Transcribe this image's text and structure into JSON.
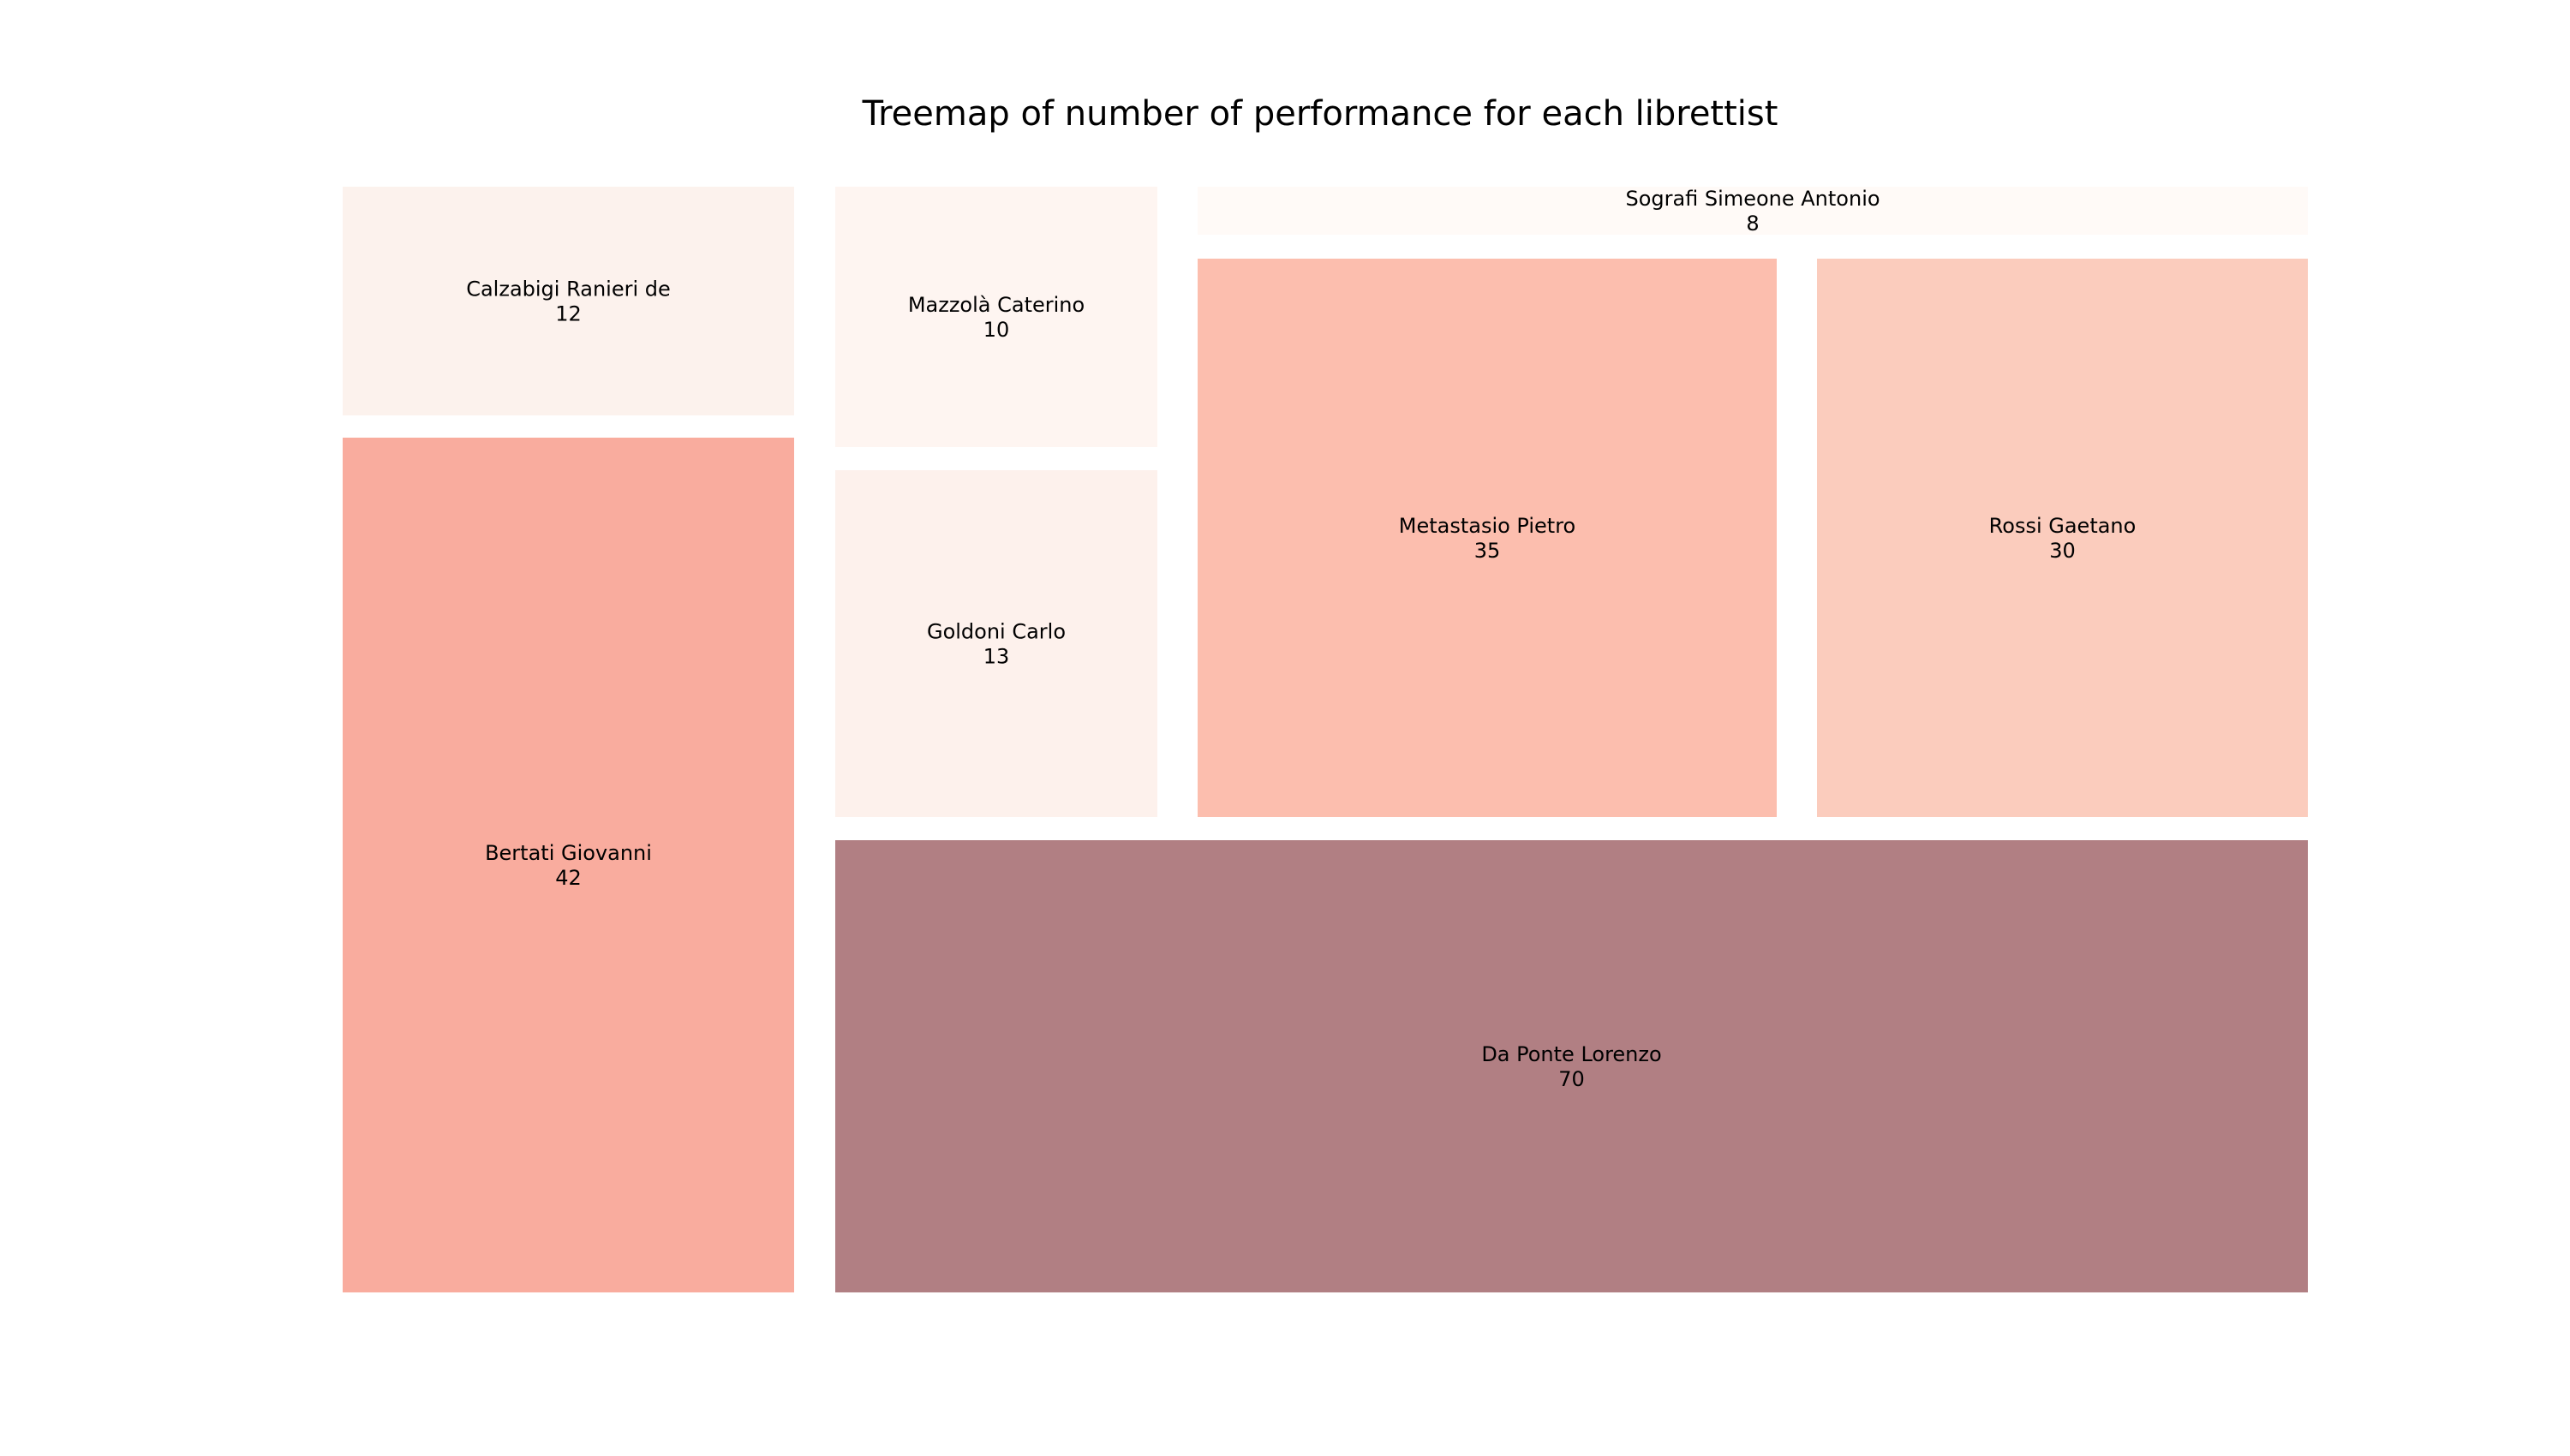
{
  "chart_data": {
    "type": "treemap",
    "title": "Treemap of number of performance for each librettist",
    "items": [
      {
        "label": "Calzabigi Ranieri de",
        "value": 12,
        "color": "#fcf2ed"
      },
      {
        "label": "Bertati Giovanni",
        "value": 42,
        "color": "#f9ac9e"
      },
      {
        "label": "Mazzolà Caterino",
        "value": 10,
        "color": "#fef5f1"
      },
      {
        "label": "Goldoni Carlo",
        "value": 13,
        "color": "#fdf1ec"
      },
      {
        "label": "Sografi Simeone Antonio",
        "value": 8,
        "color": "#fffaf7"
      },
      {
        "label": "Metastasio Pietro",
        "value": 35,
        "color": "#fcbeae"
      },
      {
        "label": "Rossi Gaetano",
        "value": 30,
        "color": "#fbccbd"
      },
      {
        "label": "Da Ponte Lorenzo",
        "value": 70,
        "color": "#b17f83"
      }
    ]
  }
}
